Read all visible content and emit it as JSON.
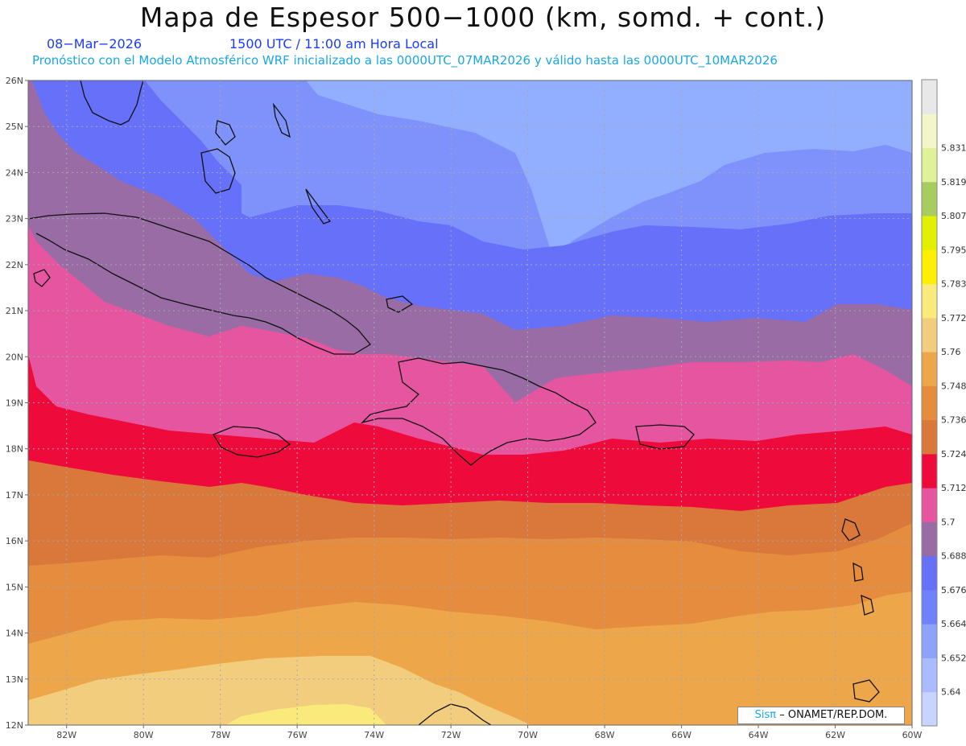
{
  "header": {
    "title": "Mapa de Espesor 500−1000 (km, somd. + cont.)",
    "date": "08−Mar−2026",
    "time": "1500 UTC / 11:00 am Hora Local",
    "description": "Pronóstico con el Modelo Atmosférico WRF inicializado a las 0000UTC_07MAR2026 y válido hasta las  0000UTC_10MAR2026"
  },
  "map": {
    "lon_range": [
      -83,
      -60
    ],
    "lat_range": [
      12,
      26
    ],
    "lat_labels": [
      "26N",
      "25N",
      "24N",
      "23N",
      "22N",
      "21N",
      "20N",
      "19N",
      "18N",
      "17N",
      "16N",
      "15N",
      "14N",
      "13N",
      "12N"
    ],
    "lon_labels": [
      "82W",
      "80W",
      "78W",
      "76W",
      "74W",
      "72W",
      "70W",
      "68W",
      "66W",
      "64W",
      "62W",
      "60W"
    ]
  },
  "legend": {
    "labels": [
      "5.64",
      "5.652",
      "5.664",
      "5.676",
      "5.688",
      "5.7",
      "5.712",
      "5.724",
      "5.736",
      "5.748",
      "5.76",
      "5.772",
      "5.783",
      "5.795",
      "5.807",
      "5.819",
      "5.831"
    ],
    "colors": [
      "#c8d4ff",
      "#aabcff",
      "#8ca2fd",
      "#6f82fb",
      "#6670f8",
      "#9a6ca6",
      "#e6559f",
      "#ef0a3c",
      "#d9783a",
      "#e58c3e",
      "#eda64a",
      "#f2cd7e",
      "#faea7c",
      "#fcf000",
      "#e2f000",
      "#a9cc60",
      "#dff29a",
      "#f2f6c8",
      "#e8e8e8"
    ]
  },
  "credit": {
    "sis": "Sisπ",
    "text": "– ONAMET/REP.DOM."
  }
}
